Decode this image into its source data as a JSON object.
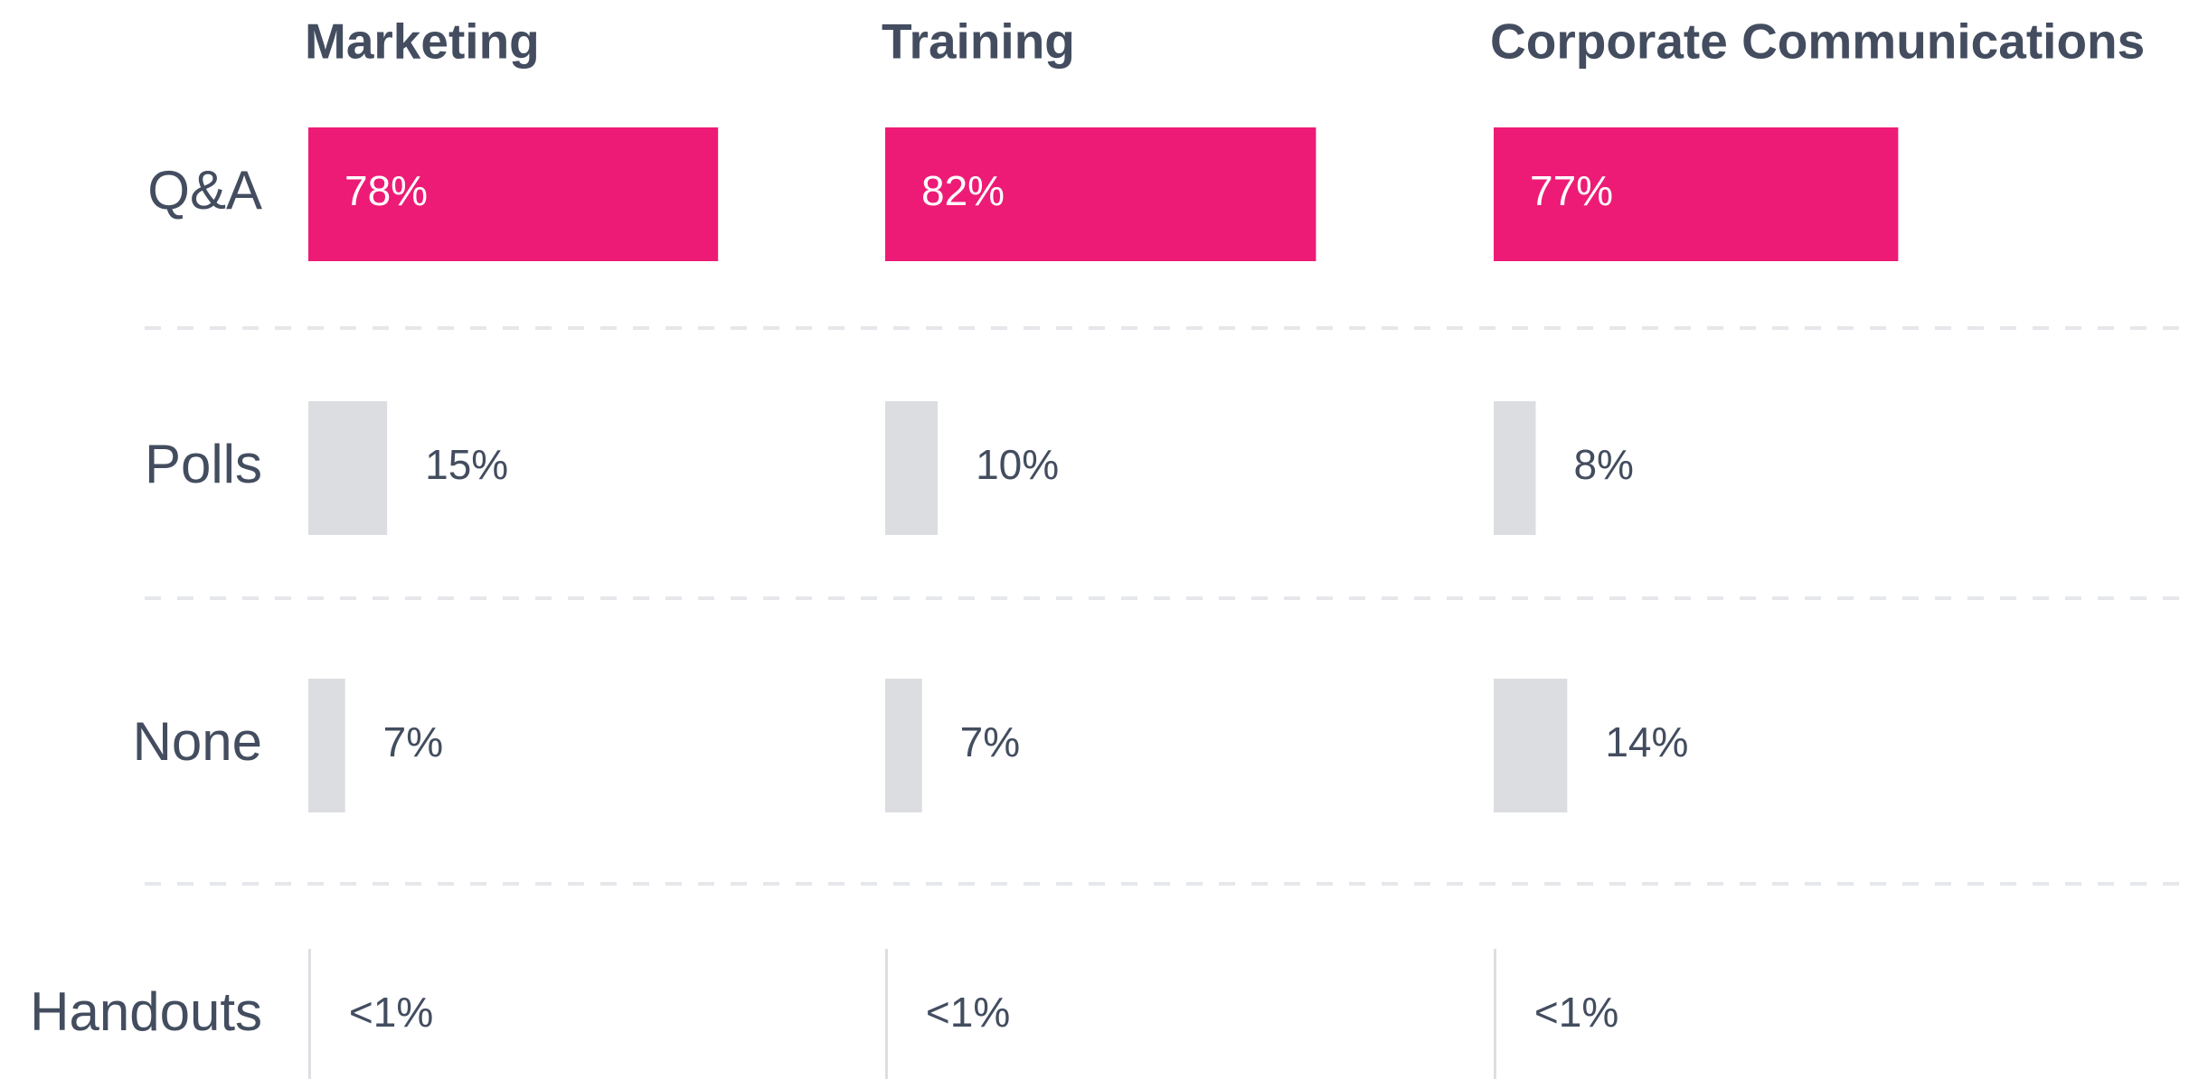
{
  "chart_data": {
    "type": "bar",
    "categories": [
      "Q&A",
      "Polls",
      "None",
      "Handouts"
    ],
    "colors": [
      "#ed1b76",
      "#dcdde1",
      "#dcdde1",
      "#dcdde1"
    ],
    "xlim": [
      0,
      100
    ],
    "series": [
      {
        "name": "Marketing",
        "values": [
          78,
          15,
          7,
          0.5
        ],
        "value_labels": [
          "78%",
          "15%",
          "7%",
          "<1%"
        ]
      },
      {
        "name": "Training",
        "values": [
          82,
          10,
          7,
          0.5
        ],
        "value_labels": [
          "82%",
          "10%",
          "7%",
          "<1%"
        ]
      },
      {
        "name": "Corporate Communications",
        "values": [
          77,
          8,
          14,
          0.5
        ],
        "value_labels": [
          "77%",
          "8%",
          "14%",
          "<1%"
        ]
      }
    ]
  }
}
